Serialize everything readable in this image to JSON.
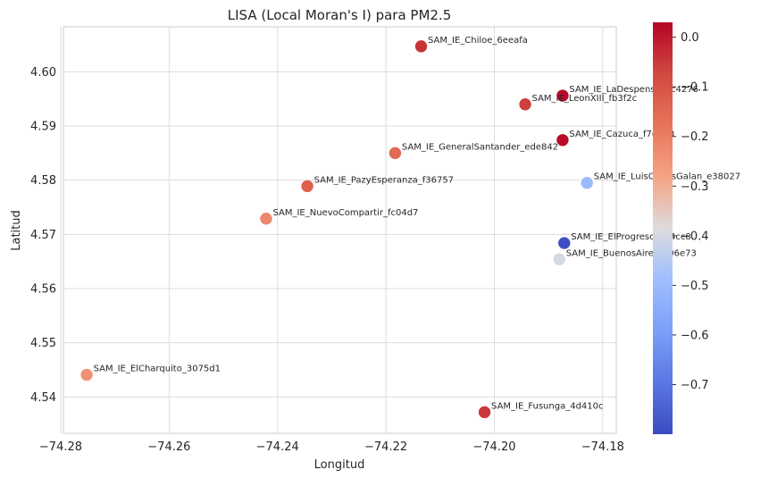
{
  "chart_data": {
    "type": "scatter",
    "title": "LISA (Local Moran's I) para PM2.5",
    "xlabel": "Longitud",
    "ylabel": "Latitud",
    "xlim": [
      -74.2795,
      -74.1775
    ],
    "ylim": [
      4.5333,
      4.6083
    ],
    "x_ticks": [
      -74.28,
      -74.26,
      -74.24,
      -74.22,
      -74.2,
      -74.18
    ],
    "x_tick_labels": [
      "−74.28",
      "−74.26",
      "−74.24",
      "−74.22",
      "−74.20",
      "−74.18"
    ],
    "y_ticks": [
      4.54,
      4.55,
      4.56,
      4.57,
      4.58,
      4.59,
      4.6
    ],
    "y_tick_labels": [
      "4.54",
      "4.55",
      "4.56",
      "4.57",
      "4.58",
      "4.59",
      "4.60"
    ],
    "grid": true,
    "colormap": "coolwarm",
    "colorbar": {
      "vmin": -0.8,
      "vmax": 0.03,
      "ticks": [
        0.0,
        -0.1,
        -0.2,
        -0.3,
        -0.4,
        -0.5,
        -0.6,
        -0.7
      ],
      "tick_labels": [
        "0.0",
        "−0.1",
        "−0.2",
        "−0.3",
        "−0.4",
        "−0.5",
        "−0.6",
        "−0.7"
      ]
    },
    "points": [
      {
        "label": "SAM_IE_Chiloe_6eeafa",
        "x": -74.2135,
        "y": 4.6047,
        "value": -0.04
      },
      {
        "label": "SAM_IE_LaDespensa_7c4276",
        "x": -74.1874,
        "y": 4.5956,
        "value": 0.02
      },
      {
        "label": "SAM_IE_LeonXIII_fb3f2c",
        "x": -74.1943,
        "y": 4.594,
        "value": -0.06
      },
      {
        "label": "SAM_IE_Cazuca_f7e900",
        "x": -74.1874,
        "y": 4.5874,
        "value": 0.02
      },
      {
        "label": "SAM_IE_GeneralSantander_ede842",
        "x": -74.2183,
        "y": 4.585,
        "value": -0.15
      },
      {
        "label": "SAM_IE_LuisCarlosGalan_e38027",
        "x": -74.1829,
        "y": 4.5795,
        "value": -0.5
      },
      {
        "label": "SAM_IE_PazyEsperanza_f36757",
        "x": -74.2345,
        "y": 4.5789,
        "value": -0.13
      },
      {
        "label": "SAM_IE_NuevoCompartir_fc04d7",
        "x": -74.2421,
        "y": 4.5729,
        "value": -0.22
      },
      {
        "label": "SAM_IE_ElProgreso_1c4cc8",
        "x": -74.1871,
        "y": 4.5684,
        "value": -0.79
      },
      {
        "label": "SAM_IE_BuenosAires_306e73",
        "x": -74.188,
        "y": 4.5654,
        "value": -0.4
      },
      {
        "label": "SAM_IE_ElCharquito_3075d1",
        "x": -74.2752,
        "y": 4.5441,
        "value": -0.24
      },
      {
        "label": "SAM_IE_Fusunga_4d410c",
        "x": -74.2018,
        "y": 4.5372,
        "value": -0.05
      }
    ]
  }
}
